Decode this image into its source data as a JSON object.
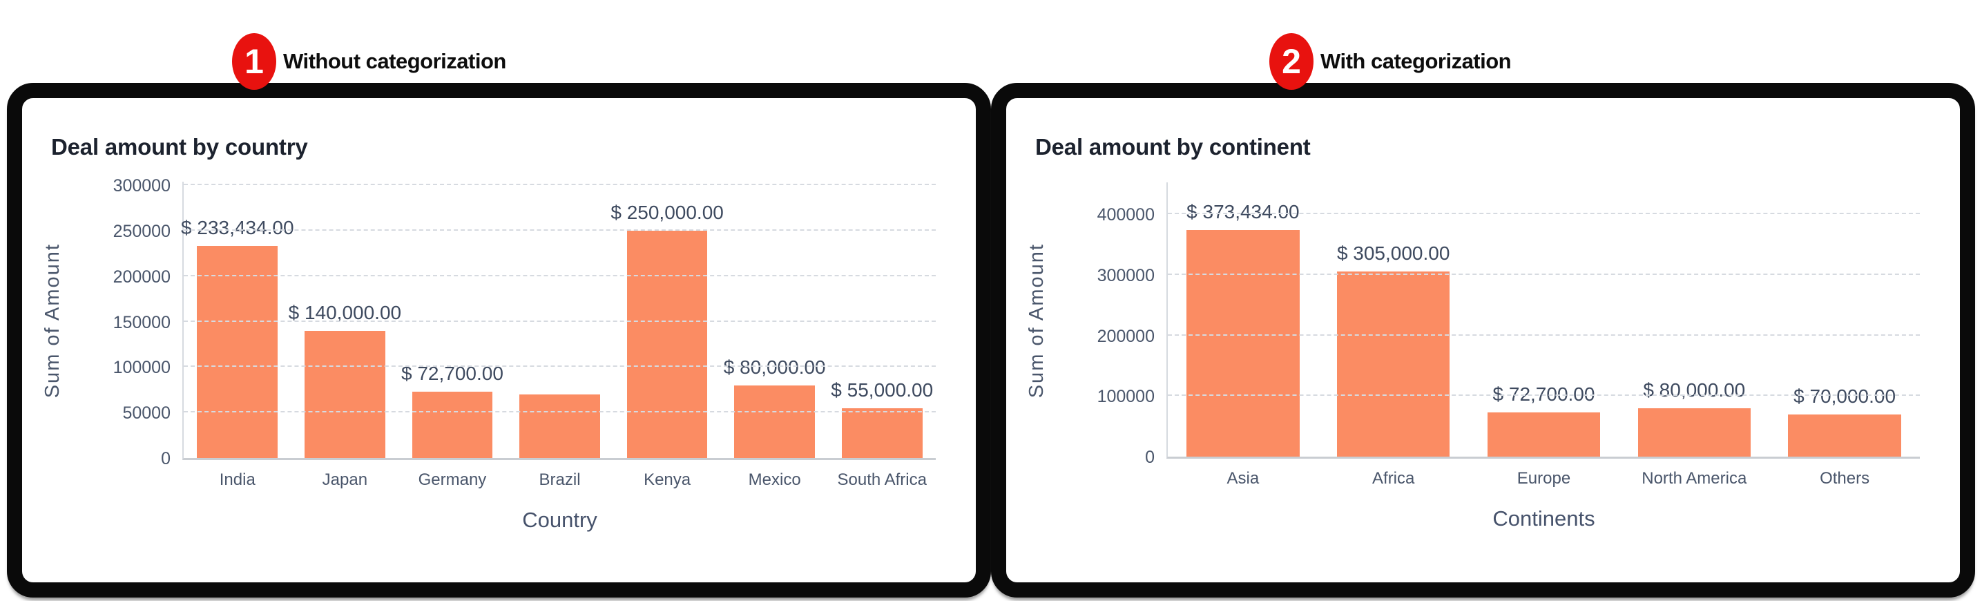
{
  "colors": {
    "bar": "#fb8c63",
    "badge": "#e8120f",
    "card_border": "#0a0a0a",
    "gridline": "#d6dae0",
    "axis_text": "#4a566b",
    "title_text": "#1c222e"
  },
  "annotations": [
    {
      "number": "1",
      "label": "Without categorization"
    },
    {
      "number": "2",
      "label": "With categorization"
    }
  ],
  "chart_data": [
    {
      "type": "bar",
      "title": "Deal amount by country",
      "xlabel": "Country",
      "ylabel": "Sum of Amount",
      "categories": [
        "India",
        "Japan",
        "Germany",
        "Brazil",
        "Kenya",
        "Mexico",
        "South Africa"
      ],
      "values": [
        233434,
        140000,
        72700,
        70000,
        250000,
        80000,
        55000
      ],
      "bar_labels": [
        "$ 233,434.00",
        "$ 140,000.00",
        "$ 72,700.00",
        "",
        "$ 250,000.00",
        "$ 80,000.00",
        "$ 55,000.00"
      ],
      "ylim": [
        0,
        300000
      ],
      "yticks": [
        0,
        50000,
        100000,
        150000,
        200000,
        250000,
        300000
      ],
      "grid": "dashed horizontal",
      "legend": "none"
    },
    {
      "type": "bar",
      "title": "Deal amount by continent",
      "xlabel": "Continents",
      "ylabel": "Sum of Amount",
      "categories": [
        "Asia",
        "Africa",
        "Europe",
        "North America",
        "Others"
      ],
      "values": [
        373434,
        305000,
        72700,
        80000,
        70000
      ],
      "bar_labels": [
        "$ 373,434.00",
        "$ 305,000.00",
        "$ 72,700.00",
        "$ 80,000.00",
        "$ 70,000.00"
      ],
      "ylim": [
        0,
        400000
      ],
      "yticks": [
        0,
        100000,
        200000,
        300000,
        400000
      ],
      "grid": "dashed horizontal",
      "legend": "none"
    }
  ]
}
